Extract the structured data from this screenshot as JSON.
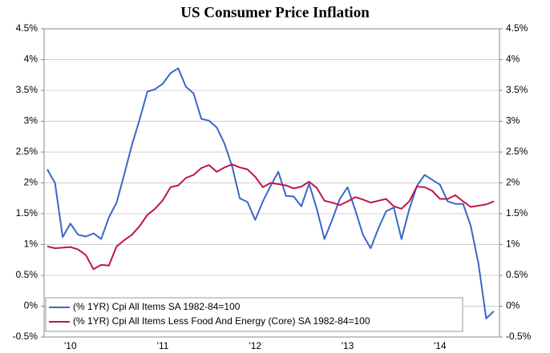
{
  "chart_data": {
    "type": "line",
    "title": "US Consumer Price Inflation",
    "categories": [
      null,
      null,
      null,
      "'10",
      null,
      null,
      null,
      null,
      null,
      null,
      null,
      null,
      null,
      null,
      null,
      "'11",
      null,
      null,
      null,
      null,
      null,
      null,
      null,
      null,
      null,
      null,
      null,
      "'12",
      null,
      null,
      null,
      null,
      null,
      null,
      null,
      null,
      null,
      null,
      null,
      "'13",
      null,
      null,
      null,
      null,
      null,
      null,
      null,
      null,
      null,
      null,
      null,
      "'14",
      null,
      null,
      null,
      null,
      null,
      null,
      null
    ],
    "series": [
      {
        "name": "(% 1YR) Cpi All Items SA 1982-84=100",
        "color": "#3a67c9",
        "values": [
          2.22,
          2.0,
          1.12,
          1.34,
          1.16,
          1.13,
          1.18,
          1.09,
          1.44,
          1.68,
          2.14,
          2.62,
          3.03,
          3.48,
          3.52,
          3.61,
          3.78,
          3.86,
          3.56,
          3.45,
          3.04,
          3.01,
          2.9,
          2.64,
          2.27,
          1.75,
          1.69,
          1.4,
          1.7,
          1.95,
          2.18,
          1.79,
          1.78,
          1.62,
          1.99,
          1.58,
          1.09,
          1.4,
          1.74,
          1.93,
          1.56,
          1.16,
          0.94,
          1.26,
          1.54,
          1.6,
          1.09,
          1.57,
          1.95,
          2.13,
          2.05,
          1.97,
          1.7,
          1.66,
          1.66,
          1.3,
          0.69,
          -0.2,
          -0.08
        ]
      },
      {
        "name": "(% 1YR) Cpi All Items Less Food And Energy (Core) SA 1982-84=100",
        "color": "#c0144a",
        "values": [
          0.97,
          0.94,
          0.95,
          0.96,
          0.92,
          0.83,
          0.6,
          0.67,
          0.66,
          0.97,
          1.07,
          1.16,
          1.3,
          1.48,
          1.58,
          1.72,
          1.93,
          1.96,
          2.08,
          2.13,
          2.24,
          2.29,
          2.18,
          2.25,
          2.3,
          2.25,
          2.22,
          2.1,
          1.93,
          2.0,
          1.98,
          1.96,
          1.91,
          1.94,
          2.02,
          1.92,
          1.71,
          1.68,
          1.64,
          1.7,
          1.77,
          1.73,
          1.68,
          1.71,
          1.74,
          1.62,
          1.58,
          1.7,
          1.94,
          1.93,
          1.87,
          1.74,
          1.74,
          1.8,
          1.7,
          1.61,
          1.63,
          1.65,
          1.7
        ]
      }
    ],
    "ylim": [
      -0.5,
      4.5
    ],
    "yticks": [
      {
        "value": -0.5,
        "label": "-0.5%"
      },
      {
        "value": 0,
        "label": "0%"
      },
      {
        "value": 0.5,
        "label": "0.5%"
      },
      {
        "value": 1,
        "label": "1%"
      },
      {
        "value": 1.5,
        "label": "1.5%"
      },
      {
        "value": 2,
        "label": "2%"
      },
      {
        "value": 2.5,
        "label": "2.5%"
      },
      {
        "value": 3,
        "label": "3%"
      },
      {
        "value": 3.5,
        "label": "3.5%"
      },
      {
        "value": 4,
        "label": "4%"
      },
      {
        "value": 4.5,
        "label": "4.5%"
      }
    ],
    "grid": true,
    "legend": "lower left"
  }
}
